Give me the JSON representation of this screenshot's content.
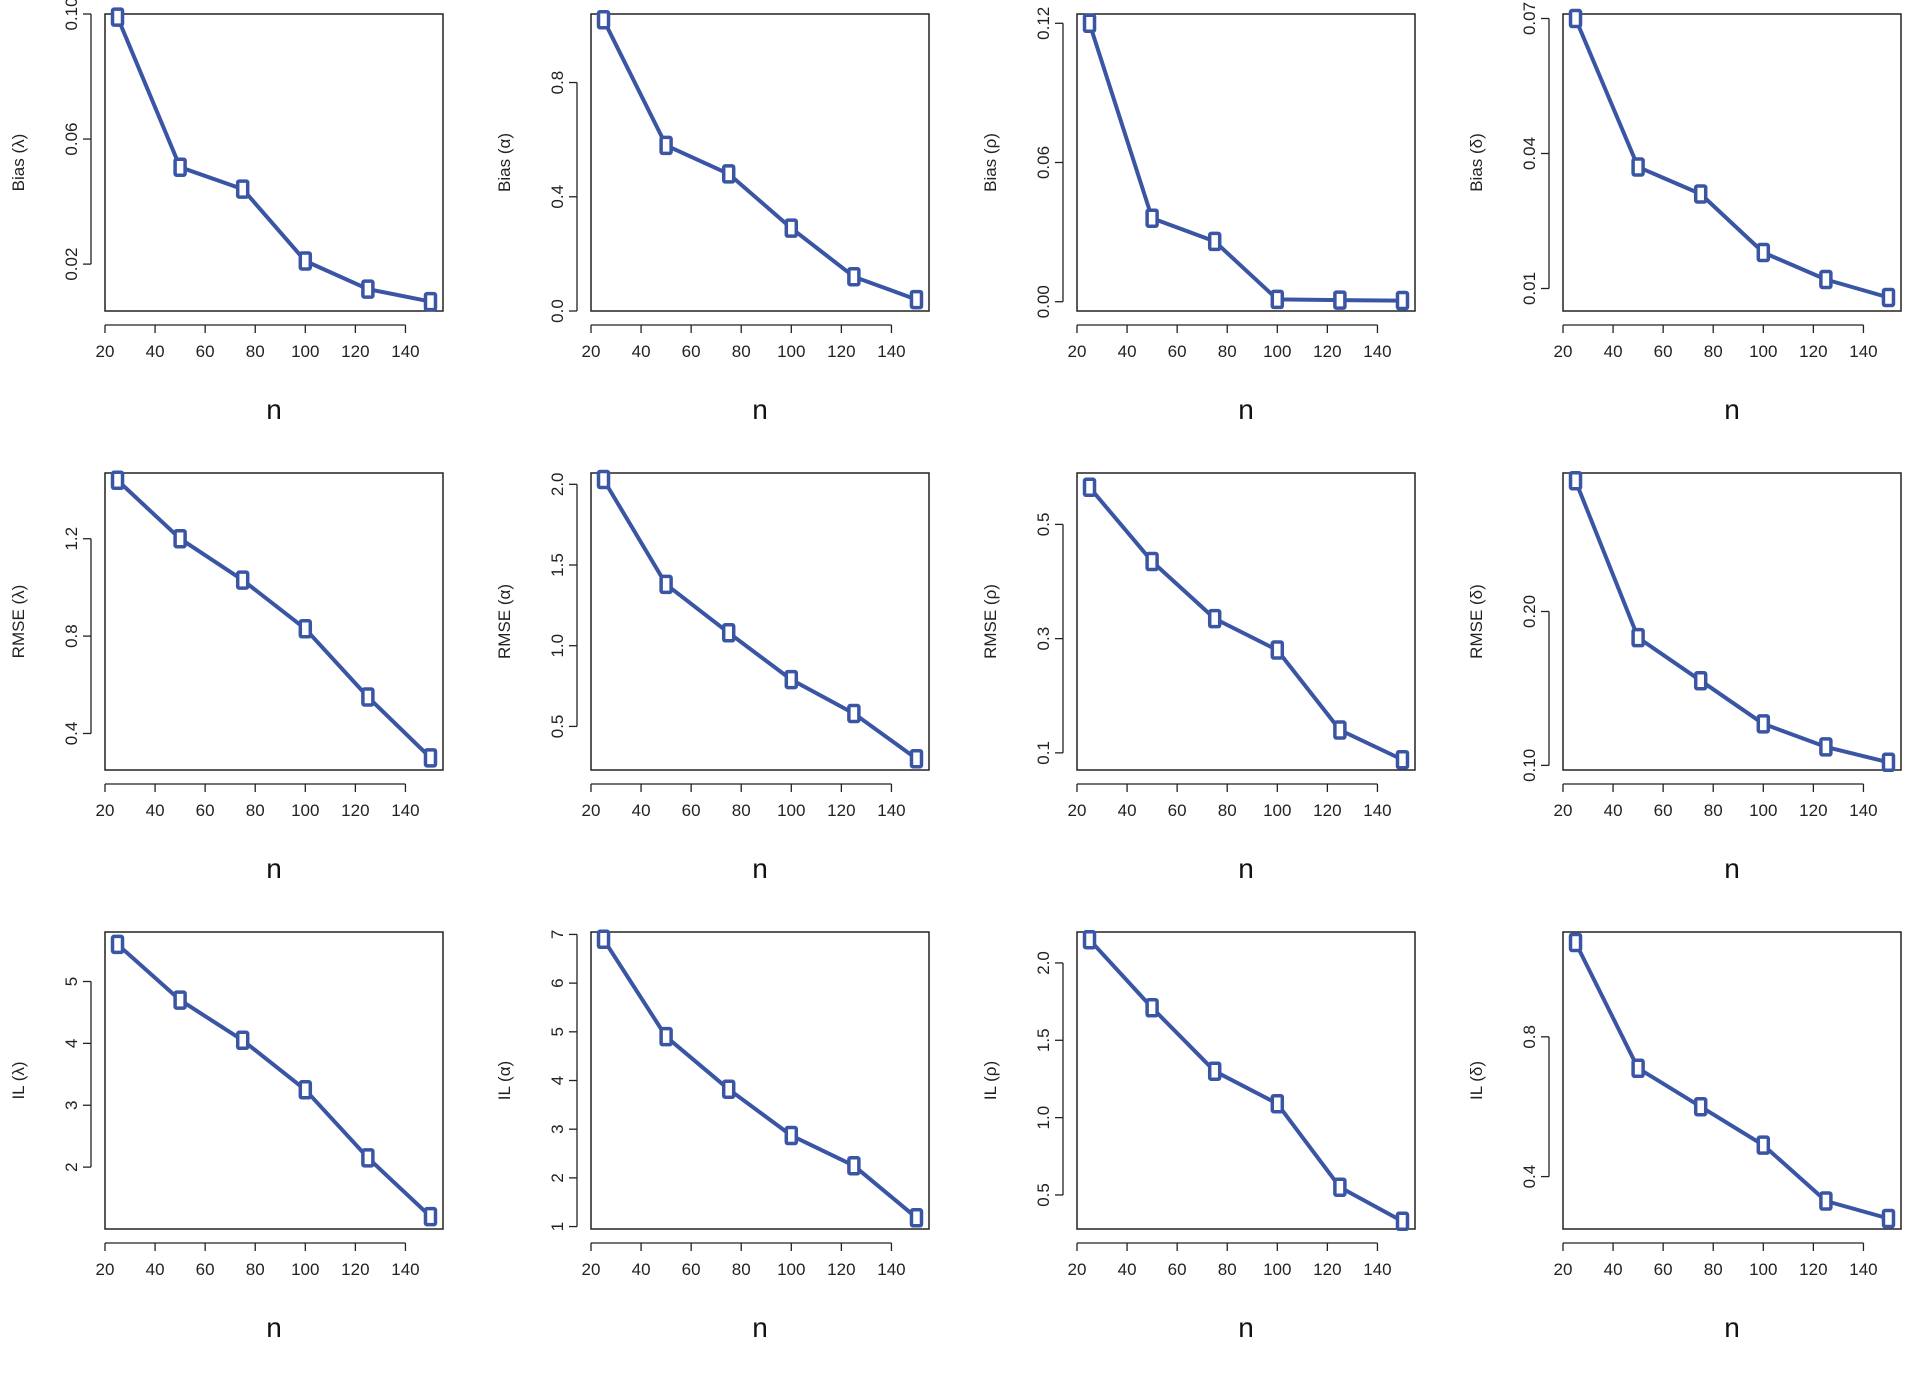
{
  "colors": {
    "series": "#3A55A4",
    "axis": "#222222"
  },
  "chart_data": [
    {
      "type": "line",
      "xlabel": "n",
      "ylabel": "Bias (λ)",
      "x": [
        25,
        50,
        75,
        100,
        125,
        150
      ],
      "values": [
        0.099,
        0.051,
        0.044,
        0.021,
        0.012,
        0.008
      ],
      "xlim": [
        20,
        155
      ],
      "ylim": [
        0.005,
        0.1
      ],
      "xticks": [
        "20",
        "40",
        "60",
        "80",
        "100",
        "120",
        "140"
      ],
      "yticks": [
        "0.02",
        "0.06",
        "0.10"
      ]
    },
    {
      "type": "line",
      "xlabel": "n",
      "ylabel": "Bias (α)",
      "x": [
        25,
        50,
        75,
        100,
        125,
        150
      ],
      "values": [
        1.02,
        0.58,
        0.48,
        0.29,
        0.12,
        0.04
      ],
      "xlim": [
        20,
        155
      ],
      "ylim": [
        0.0,
        1.04
      ],
      "xticks": [
        "20",
        "40",
        "60",
        "80",
        "100",
        "120",
        "140"
      ],
      "yticks": [
        "0.0",
        "0.4",
        "0.8"
      ]
    },
    {
      "type": "line",
      "xlabel": "n",
      "ylabel": "Bias (ρ)",
      "x": [
        25,
        50,
        75,
        100,
        125,
        150
      ],
      "values": [
        0.12,
        0.036,
        0.026,
        0.001,
        0.0007,
        0.0005
      ],
      "xlim": [
        20,
        155
      ],
      "ylim": [
        -0.004,
        0.124
      ],
      "xticks": [
        "20",
        "40",
        "60",
        "80",
        "100",
        "120",
        "140"
      ],
      "yticks": [
        "0.00",
        "0.06",
        "0.12"
      ]
    },
    {
      "type": "line",
      "xlabel": "n",
      "ylabel": "Bias (δ)",
      "x": [
        25,
        50,
        75,
        100,
        125,
        150
      ],
      "values": [
        0.07,
        0.037,
        0.031,
        0.018,
        0.012,
        0.008
      ],
      "xlim": [
        20,
        155
      ],
      "ylim": [
        0.005,
        0.071
      ],
      "xticks": [
        "20",
        "40",
        "60",
        "80",
        "100",
        "120",
        "140"
      ],
      "yticks": [
        "0.01",
        "0.04",
        "0.07"
      ]
    },
    {
      "type": "line",
      "xlabel": "n",
      "ylabel": "RMSE (λ)",
      "x": [
        25,
        50,
        75,
        100,
        125,
        150
      ],
      "values": [
        1.44,
        1.2,
        1.03,
        0.83,
        0.55,
        0.3
      ],
      "xlim": [
        20,
        155
      ],
      "ylim": [
        0.25,
        1.47
      ],
      "xticks": [
        "20",
        "40",
        "60",
        "80",
        "100",
        "120",
        "140"
      ],
      "yticks": [
        "0.4",
        "0.8",
        "1.2"
      ]
    },
    {
      "type": "line",
      "xlabel": "n",
      "ylabel": "RMSE (α)",
      "x": [
        25,
        50,
        75,
        100,
        125,
        150
      ],
      "values": [
        2.03,
        1.38,
        1.08,
        0.79,
        0.58,
        0.3
      ],
      "xlim": [
        20,
        155
      ],
      "ylim": [
        0.23,
        2.07
      ],
      "xticks": [
        "20",
        "40",
        "60",
        "80",
        "100",
        "120",
        "140"
      ],
      "yticks": [
        "0.5",
        "1.0",
        "1.5",
        "2.0"
      ]
    },
    {
      "type": "line",
      "xlabel": "n",
      "ylabel": "RMSE (ρ)",
      "x": [
        25,
        50,
        75,
        100,
        125,
        150
      ],
      "values": [
        0.565,
        0.435,
        0.335,
        0.28,
        0.14,
        0.088
      ],
      "xlim": [
        20,
        155
      ],
      "ylim": [
        0.07,
        0.59
      ],
      "xticks": [
        "20",
        "40",
        "60",
        "80",
        "100",
        "120",
        "140"
      ],
      "yticks": [
        "0.1",
        "0.3",
        "0.5"
      ]
    },
    {
      "type": "line",
      "xlabel": "n",
      "ylabel": "RMSE (δ)",
      "x": [
        25,
        50,
        75,
        100,
        125,
        150
      ],
      "values": [
        0.285,
        0.183,
        0.155,
        0.127,
        0.112,
        0.102
      ],
      "xlim": [
        20,
        155
      ],
      "ylim": [
        0.097,
        0.29
      ],
      "xticks": [
        "20",
        "40",
        "60",
        "80",
        "100",
        "120",
        "140"
      ],
      "yticks": [
        "0.10",
        "0.20"
      ]
    },
    {
      "type": "line",
      "xlabel": "n",
      "ylabel": "IL (λ)",
      "x": [
        25,
        50,
        75,
        100,
        125,
        150
      ],
      "values": [
        5.6,
        4.7,
        4.05,
        3.25,
        2.15,
        1.2
      ],
      "xlim": [
        20,
        155
      ],
      "ylim": [
        1.0,
        5.8
      ],
      "xticks": [
        "20",
        "40",
        "60",
        "80",
        "100",
        "120",
        "140"
      ],
      "yticks": [
        "2",
        "3",
        "4",
        "5"
      ]
    },
    {
      "type": "line",
      "xlabel": "n",
      "ylabel": "IL (α)",
      "x": [
        25,
        50,
        75,
        100,
        125,
        150
      ],
      "values": [
        6.9,
        4.9,
        3.82,
        2.87,
        2.25,
        1.18
      ],
      "xlim": [
        20,
        155
      ],
      "ylim": [
        0.95,
        7.05
      ],
      "xticks": [
        "20",
        "40",
        "60",
        "80",
        "100",
        "120",
        "140"
      ],
      "yticks": [
        "1",
        "2",
        "3",
        "4",
        "5",
        "6",
        "7"
      ]
    },
    {
      "type": "line",
      "xlabel": "n",
      "ylabel": "IL (ρ)",
      "x": [
        25,
        50,
        75,
        100,
        125,
        150
      ],
      "values": [
        2.15,
        1.71,
        1.3,
        1.09,
        0.55,
        0.33
      ],
      "xlim": [
        20,
        155
      ],
      "ylim": [
        0.28,
        2.2
      ],
      "xticks": [
        "20",
        "40",
        "60",
        "80",
        "100",
        "120",
        "140"
      ],
      "yticks": [
        "0.5",
        "1.0",
        "1.5",
        "2.0"
      ]
    },
    {
      "type": "line",
      "xlabel": "n",
      "ylabel": "IL (δ)",
      "x": [
        25,
        50,
        75,
        100,
        125,
        150
      ],
      "values": [
        1.07,
        0.71,
        0.6,
        0.49,
        0.33,
        0.28
      ],
      "xlim": [
        20,
        155
      ],
      "ylim": [
        0.25,
        1.1
      ],
      "xticks": [
        "20",
        "40",
        "60",
        "80",
        "100",
        "120",
        "140"
      ],
      "yticks": [
        "0.4",
        "0.8"
      ]
    }
  ]
}
